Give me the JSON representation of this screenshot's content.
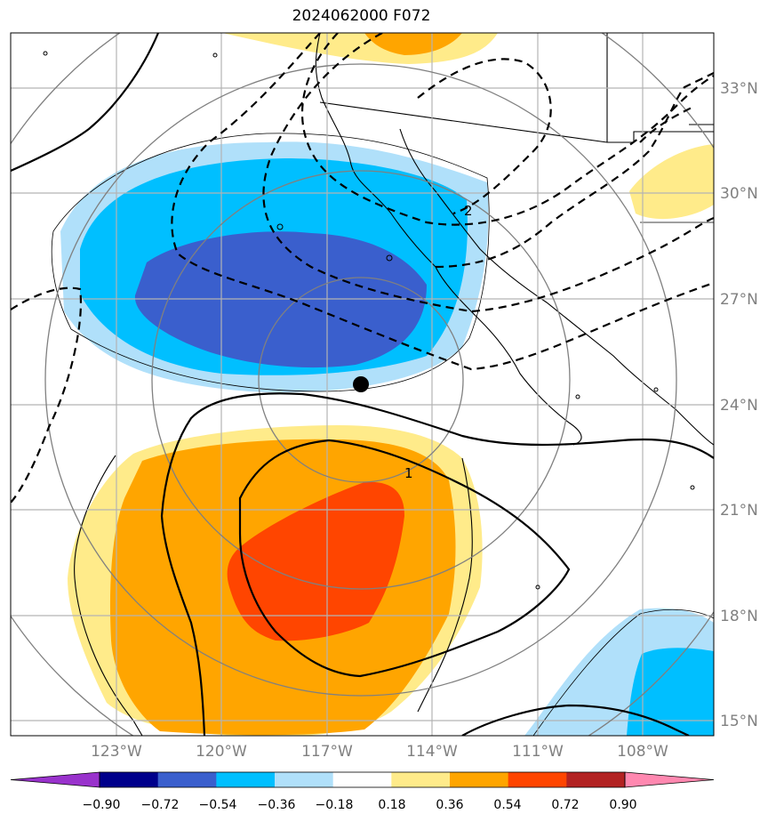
{
  "title": "2024062000 F072",
  "lat_labels": [
    "33°N",
    "30°N",
    "27°N",
    "24°N",
    "21°N",
    "18°N",
    "15°N"
  ],
  "lon_labels": [
    "123°W",
    "120°W",
    "117°W",
    "114°W",
    "111°W",
    "108°W"
  ],
  "contour_labels": [
    "2",
    "1"
  ],
  "colorbar": {
    "ticks": [
      "−0.90",
      "−0.72",
      "−0.54",
      "−0.36",
      "−0.18",
      "0.18",
      "0.36",
      "0.54",
      "0.72",
      "0.90"
    ],
    "colors": [
      "#9932cc",
      "#00008b",
      "#3a5fcd",
      "#00bfff",
      "#b0e0fa",
      "#ffffff",
      "#ffeb8a",
      "#ffa500",
      "#ff4500",
      "#b22222",
      "#ff88b0"
    ]
  },
  "palette": {
    "blue_light": "#b0e0fa",
    "blue_mid": "#00bfff",
    "blue_dark": "#3a5fcd",
    "yellow": "#ffeb8a",
    "orange": "#ffa500",
    "red_orange": "#ff4500"
  }
}
